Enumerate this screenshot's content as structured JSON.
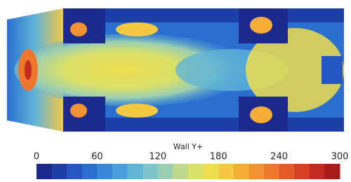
{
  "chart_data": {
    "type": "contour",
    "colorbar": {
      "label": "Wall Y+",
      "lim": [
        0,
        300
      ],
      "ticks": [
        0,
        60,
        120,
        180,
        240,
        300
      ],
      "colors": [
        "#1b2a8c",
        "#1f3fa8",
        "#2657c0",
        "#2a6fd0",
        "#3a87d8",
        "#4aa0dc",
        "#5fb4d8",
        "#7cc3cc",
        "#9ccfb0",
        "#bcd98c",
        "#d9e06a",
        "#eedd4f",
        "#f5c842",
        "#f5ad38",
        "#f29232",
        "#ec772d",
        "#e35b28",
        "#d64124",
        "#c32a20",
        "#a81c1c"
      ]
    }
  }
}
